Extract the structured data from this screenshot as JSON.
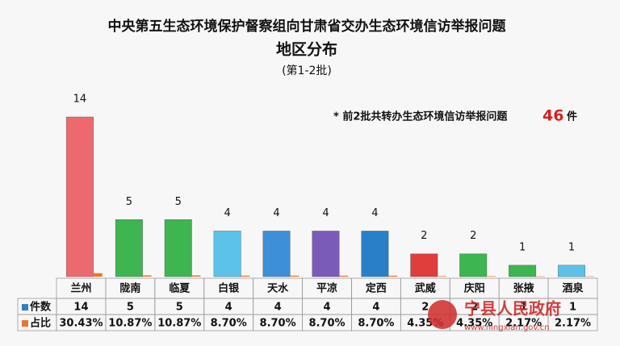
{
  "chart_data": {
    "type": "bar",
    "title": "中央第五生态环境保护督察组向甘肃省交办生态环境信访举报问题",
    "subtitle": "地区分布",
    "subtitle2": "(第1-2批)",
    "annotation": {
      "prefix": "* 前2批共转办生态环境信访举报问题",
      "value": 46,
      "suffix": "件"
    },
    "categories": [
      "兰州",
      "陇南",
      "临夏",
      "白银",
      "天水",
      "平凉",
      "定西",
      "武威",
      "庆阳",
      "张掖",
      "酒泉"
    ],
    "series": [
      {
        "name": "件数",
        "color": "#2f7fc1",
        "values": [
          14,
          5,
          5,
          4,
          4,
          4,
          4,
          2,
          2,
          1,
          1
        ],
        "colors": [
          "#ec6a6e",
          "#3db550",
          "#3db550",
          "#5cc2ea",
          "#3d8fd8",
          "#7a5bb8",
          "#2a80c8",
          "#e03d3d",
          "#3db550",
          "#3db550",
          "#5cc2ea"
        ]
      },
      {
        "name": "占比",
        "color": "#e8772e",
        "values": [
          0.3043,
          0.1087,
          0.1087,
          0.087,
          0.087,
          0.087,
          0.087,
          0.0435,
          0.0435,
          0.0217,
          0.0217
        ],
        "value_labels": [
          "30.43%",
          "10.87%",
          "10.87%",
          "8.70%",
          "8.70%",
          "8.70%",
          "8.70%",
          "4.35%",
          "4.35%",
          "2.17%",
          "2.17%"
        ]
      }
    ],
    "watermark": {
      "text": "宁县人民政府",
      "url": "www.ningxian.gov.cn"
    }
  }
}
